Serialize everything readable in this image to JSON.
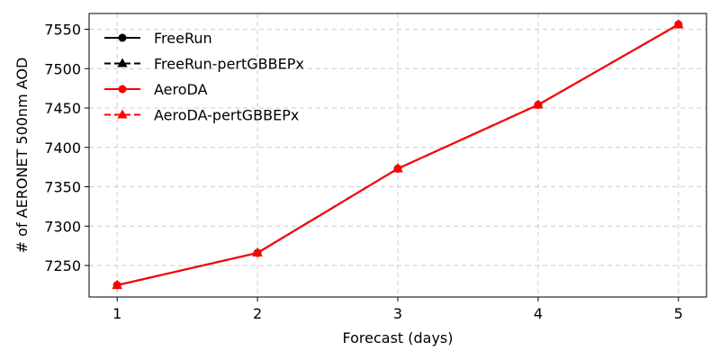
{
  "chart_data": {
    "type": "line",
    "title": "",
    "xlabel": "Forecast (days)",
    "ylabel": "# of AERONET 500nm AOD",
    "x": [
      1,
      2,
      3,
      4,
      5
    ],
    "xticks": [
      "1",
      "2",
      "3",
      "4",
      "5"
    ],
    "yticks": [
      7250,
      7300,
      7350,
      7400,
      7450,
      7500,
      7550
    ],
    "ytick_labels": [
      "7250",
      "7300",
      "7350",
      "7400",
      "7450",
      "7500",
      "7550"
    ],
    "xlim": [
      0.8,
      5.2
    ],
    "ylim": [
      7210,
      7570
    ],
    "grid": true,
    "legend_position": "upper-left",
    "series": [
      {
        "name": "FreeRun",
        "values": [
          7225,
          7266,
          7373,
          7454,
          7556
        ],
        "color": "#000000",
        "linestyle": "solid",
        "marker": "circle"
      },
      {
        "name": "FreeRun-pertGBBEPx",
        "values": [
          7225,
          7266,
          7373,
          7454,
          7556
        ],
        "color": "#000000",
        "linestyle": "dashed",
        "marker": "triangle"
      },
      {
        "name": "AeroDA",
        "values": [
          7225,
          7266,
          7373,
          7454,
          7556
        ],
        "color": "#ff0000",
        "linestyle": "solid",
        "marker": "circle"
      },
      {
        "name": "AeroDA-pertGBBEPx",
        "values": [
          7225,
          7266,
          7373,
          7454,
          7556
        ],
        "color": "#ff0000",
        "linestyle": "dashed",
        "marker": "triangle"
      }
    ]
  }
}
